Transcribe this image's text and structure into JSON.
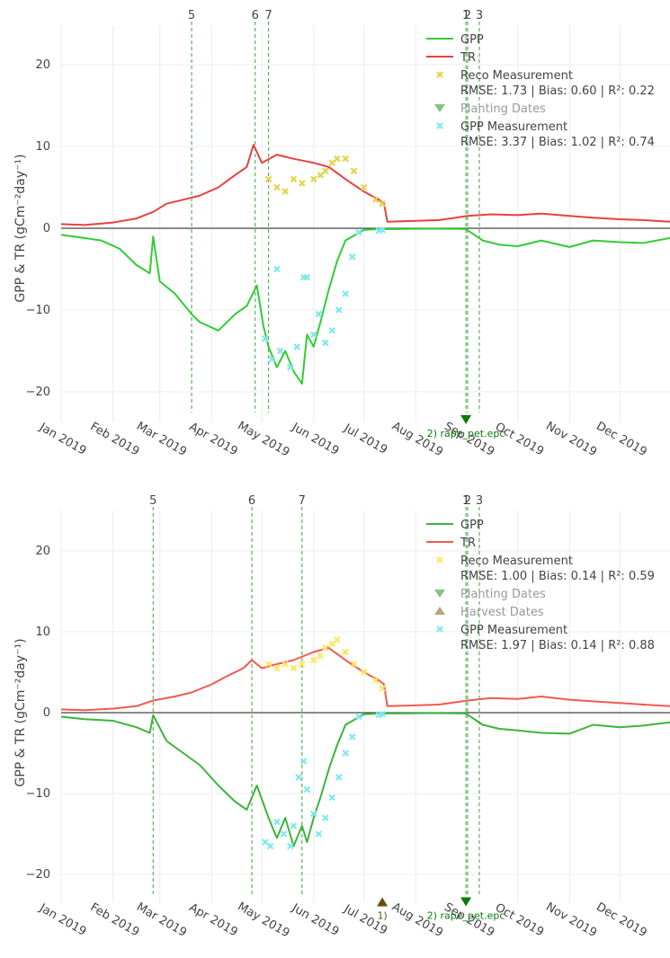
{
  "chart_data": [
    {
      "type": "line",
      "title": "",
      "ylabel": "GPP & TR (gCm⁻²day⁻¹)",
      "ylim": [
        -25,
        25
      ],
      "xlim": [
        "2019-01-01",
        "2019-12-31"
      ],
      "x_ticks": [
        "Jan 2019",
        "Feb 2019",
        "Mar 2019",
        "Apr 2019",
        "May 2019",
        "Jun 2019",
        "Jul 2019",
        "Aug 2019",
        "Sep 2019",
        "Oct 2019",
        "Nov 2019",
        "Dec 2019"
      ],
      "y_ticks": [
        20,
        10,
        0,
        -10,
        -20
      ],
      "grid": true,
      "legend_position": "top-right",
      "legend": [
        {
          "label": "GPP",
          "kind": "line",
          "color": "#33cc33"
        },
        {
          "label": "TR",
          "kind": "line",
          "color": "#e84040"
        },
        {
          "label": "Reco Measurement",
          "kind": "marker",
          "color": "#e6d24a",
          "stats": "RMSE: 1.73 | Bias: 0.60 | R²: 0.22"
        },
        {
          "label": "Planting Dates",
          "kind": "triangle-down",
          "color": "#2e9e2e",
          "muted": true
        },
        {
          "label": "GPP Measurement",
          "kind": "marker",
          "color": "#7ee8ee",
          "stats": "RMSE: 3.37 | Bias: 1.02 | R²: 0.74"
        }
      ],
      "vlines": [
        {
          "label": "5",
          "date": "2019-03-20"
        },
        {
          "label": "6",
          "date": "2019-04-27"
        },
        {
          "label": "7",
          "date": "2019-05-05"
        },
        {
          "label": "1",
          "date": "2019-08-31"
        },
        {
          "label": "2",
          "date": "2019-09-01"
        },
        {
          "label": "3",
          "date": "2019-09-08"
        }
      ],
      "markers": [
        {
          "shape": "triangle-down",
          "date": "2019-08-31",
          "y": -23.5,
          "label": "2) rape_pet.epc",
          "color": "#0a7a0a"
        }
      ],
      "series": [
        {
          "name": "GPP",
          "color": "#33cc33",
          "x": [
            "2019-01-01",
            "2019-01-15",
            "2019-01-25",
            "2019-02-05",
            "2019-02-15",
            "2019-02-23",
            "2019-02-25",
            "2019-03-01",
            "2019-03-10",
            "2019-03-20",
            "2019-03-25",
            "2019-04-05",
            "2019-04-15",
            "2019-04-22",
            "2019-04-28",
            "2019-05-02",
            "2019-05-05",
            "2019-05-10",
            "2019-05-15",
            "2019-05-20",
            "2019-05-25",
            "2019-05-28",
            "2019-06-01",
            "2019-06-05",
            "2019-06-10",
            "2019-06-15",
            "2019-06-20",
            "2019-07-01",
            "2019-07-10",
            "2019-07-20",
            "2019-08-10",
            "2019-08-31",
            "2019-09-10",
            "2019-09-20",
            "2019-10-01",
            "2019-10-15",
            "2019-11-01",
            "2019-11-15",
            "2019-12-01",
            "2019-12-15",
            "2019-12-31"
          ],
          "y": [
            -0.8,
            -1.2,
            -1.5,
            -2.5,
            -4.5,
            -5.5,
            -1,
            -6.5,
            -8,
            -10.5,
            -11.5,
            -12.5,
            -10.5,
            -9.5,
            -7,
            -12,
            -14.5,
            -17,
            -15,
            -17.5,
            -19,
            -13,
            -14.5,
            -11.5,
            -7.5,
            -4,
            -1.5,
            -0.2,
            -0.1,
            -0.1,
            -0.05,
            -0.1,
            -1.5,
            -2,
            -2.2,
            -1.5,
            -2.3,
            -1.5,
            -1.7,
            -1.8,
            -1.2
          ]
        },
        {
          "name": "TR",
          "color": "#e84040",
          "x": [
            "2019-01-01",
            "2019-01-15",
            "2019-02-01",
            "2019-02-15",
            "2019-02-25",
            "2019-03-05",
            "2019-03-15",
            "2019-03-25",
            "2019-04-05",
            "2019-04-15",
            "2019-04-22",
            "2019-04-26",
            "2019-05-01",
            "2019-05-10",
            "2019-05-20",
            "2019-06-01",
            "2019-06-10",
            "2019-06-20",
            "2019-07-01",
            "2019-07-10",
            "2019-07-13",
            "2019-07-15",
            "2019-08-01",
            "2019-08-15",
            "2019-09-01",
            "2019-09-15",
            "2019-10-01",
            "2019-10-15",
            "2019-11-01",
            "2019-11-15",
            "2019-12-01",
            "2019-12-15",
            "2019-12-31"
          ],
          "y": [
            0.5,
            0.4,
            0.7,
            1.2,
            2,
            3,
            3.5,
            4,
            5,
            6.5,
            7.5,
            10.2,
            8,
            9,
            8.5,
            8,
            7.5,
            6,
            4.5,
            3.5,
            3,
            0.8,
            0.9,
            1,
            1.5,
            1.7,
            1.6,
            1.8,
            1.5,
            1.3,
            1.1,
            1,
            0.8
          ]
        }
      ],
      "scatter": [
        {
          "name": "Reco Measurement",
          "color": "#e6d24a",
          "x": [
            "2019-05-05",
            "2019-05-10",
            "2019-05-15",
            "2019-05-20",
            "2019-05-25",
            "2019-06-01",
            "2019-06-05",
            "2019-06-08",
            "2019-06-12",
            "2019-06-15",
            "2019-06-20",
            "2019-06-25",
            "2019-07-01",
            "2019-07-08",
            "2019-07-12"
          ],
          "y": [
            6,
            5,
            4.5,
            6,
            5.5,
            6,
            6.5,
            7,
            8,
            8.5,
            8.5,
            7,
            5,
            3.5,
            3
          ]
        },
        {
          "name": "GPP Measurement",
          "color": "#7ee8ee",
          "x": [
            "2019-05-03",
            "2019-05-07",
            "2019-05-10",
            "2019-05-12",
            "2019-05-18",
            "2019-05-22",
            "2019-05-26",
            "2019-05-28",
            "2019-06-01",
            "2019-06-04",
            "2019-06-08",
            "2019-06-12",
            "2019-06-16",
            "2019-06-20",
            "2019-06-24",
            "2019-06-28",
            "2019-07-10",
            "2019-07-12"
          ],
          "y": [
            -13.5,
            -16,
            -5,
            -15,
            -17,
            -14.5,
            -6,
            -6,
            -13,
            -10.5,
            -14,
            -12.5,
            -10,
            -8,
            -3.5,
            -0.5,
            -0.3,
            -0.2
          ]
        }
      ]
    },
    {
      "type": "line",
      "title": "",
      "ylabel": "GPP & TR (gCm⁻²day⁻¹)",
      "ylim": [
        -25,
        25
      ],
      "xlim": [
        "2019-01-01",
        "2019-12-31"
      ],
      "x_ticks": [
        "Jan 2019",
        "Feb 2019",
        "Mar 2019",
        "Apr 2019",
        "May 2019",
        "Jun 2019",
        "Jul 2019",
        "Aug 2019",
        "Sep 2019",
        "Oct 2019",
        "Nov 2019",
        "Dec 2019"
      ],
      "y_ticks": [
        20,
        10,
        0,
        -10,
        -20
      ],
      "grid": true,
      "legend_position": "top-right",
      "legend": [
        {
          "label": "GPP",
          "kind": "line",
          "color": "#3cb43c"
        },
        {
          "label": "TR",
          "kind": "line",
          "color": "#ef5a50"
        },
        {
          "label": "Reco Measurement",
          "kind": "marker",
          "color": "#ffe45a",
          "stats": "RMSE: 1.00 | Bias: 0.14 | R²: 0.59"
        },
        {
          "label": "Planting Dates",
          "kind": "triangle-down",
          "color": "#2e9e2e",
          "muted": true
        },
        {
          "label": "Harvest Dates",
          "kind": "triangle-up",
          "color": "#8a6a20",
          "muted": true
        },
        {
          "label": "GPP Measurement",
          "kind": "marker",
          "color": "#7ee8ee",
          "stats": "RMSE: 1.97 | Bias: 0.14 | R²: 0.88"
        }
      ],
      "vlines": [
        {
          "label": "5",
          "date": "2019-02-25"
        },
        {
          "label": "6",
          "date": "2019-04-25"
        },
        {
          "label": "7",
          "date": "2019-05-25"
        },
        {
          "label": "1",
          "date": "2019-08-31"
        },
        {
          "label": "2",
          "date": "2019-09-01"
        },
        {
          "label": "3",
          "date": "2019-09-08"
        }
      ],
      "markers": [
        {
          "shape": "triangle-down",
          "date": "2019-08-31",
          "y": -23.5,
          "label": "2) rape_pet.epc",
          "color": "#0a7a0a"
        },
        {
          "shape": "triangle-up",
          "date": "2019-07-12",
          "y": -23.5,
          "label": "1)",
          "color": "#6b4a10"
        }
      ],
      "series": [
        {
          "name": "GPP",
          "color": "#3cb43c",
          "x": [
            "2019-01-01",
            "2019-01-15",
            "2019-02-01",
            "2019-02-15",
            "2019-02-23",
            "2019-02-25",
            "2019-03-05",
            "2019-03-15",
            "2019-03-25",
            "2019-04-05",
            "2019-04-15",
            "2019-04-22",
            "2019-04-28",
            "2019-05-05",
            "2019-05-10",
            "2019-05-15",
            "2019-05-20",
            "2019-05-25",
            "2019-05-28",
            "2019-06-01",
            "2019-06-05",
            "2019-06-10",
            "2019-06-15",
            "2019-06-20",
            "2019-07-01",
            "2019-07-10",
            "2019-07-20",
            "2019-08-10",
            "2019-08-31",
            "2019-09-10",
            "2019-09-20",
            "2019-10-01",
            "2019-10-15",
            "2019-11-01",
            "2019-11-15",
            "2019-12-01",
            "2019-12-15",
            "2019-12-31"
          ],
          "y": [
            -0.5,
            -0.8,
            -1,
            -1.8,
            -2.5,
            -0.3,
            -3.5,
            -5,
            -6.5,
            -9,
            -11,
            -12,
            -9,
            -13,
            -15.5,
            -13,
            -16.5,
            -14,
            -16,
            -13,
            -10.5,
            -7,
            -4,
            -1.5,
            -0.2,
            -0.1,
            -0.1,
            -0.05,
            -0.1,
            -1.5,
            -2,
            -2.2,
            -2.5,
            -2.6,
            -1.5,
            -1.8,
            -1.6,
            -1.2
          ]
        },
        {
          "name": "TR",
          "color": "#ef5a50",
          "x": [
            "2019-01-01",
            "2019-01-15",
            "2019-02-01",
            "2019-02-15",
            "2019-02-25",
            "2019-03-10",
            "2019-03-20",
            "2019-04-01",
            "2019-04-10",
            "2019-04-20",
            "2019-04-25",
            "2019-05-01",
            "2019-05-10",
            "2019-05-20",
            "2019-06-01",
            "2019-06-10",
            "2019-06-20",
            "2019-07-01",
            "2019-07-10",
            "2019-07-13",
            "2019-07-15",
            "2019-08-01",
            "2019-08-15",
            "2019-09-01",
            "2019-09-15",
            "2019-10-01",
            "2019-10-15",
            "2019-11-01",
            "2019-11-15",
            "2019-12-01",
            "2019-12-15",
            "2019-12-31"
          ],
          "y": [
            0.4,
            0.3,
            0.5,
            0.8,
            1.5,
            2,
            2.5,
            3.5,
            4.5,
            5.5,
            6.5,
            5.5,
            6,
            6.5,
            7.5,
            8,
            6.5,
            5,
            4,
            3.5,
            0.8,
            0.9,
            1,
            1.5,
            1.8,
            1.7,
            2,
            1.6,
            1.4,
            1.2,
            1,
            0.8
          ]
        }
      ],
      "scatter": [
        {
          "name": "Reco Measurement",
          "color": "#ffe45a",
          "x": [
            "2019-05-05",
            "2019-05-10",
            "2019-05-15",
            "2019-05-20",
            "2019-05-25",
            "2019-06-01",
            "2019-06-05",
            "2019-06-08",
            "2019-06-12",
            "2019-06-15",
            "2019-06-20",
            "2019-06-25",
            "2019-07-01",
            "2019-07-08",
            "2019-07-12"
          ],
          "y": [
            6,
            5.5,
            6,
            5.5,
            6,
            6.5,
            7,
            8,
            8.5,
            9,
            7.5,
            6,
            5,
            4,
            3
          ]
        },
        {
          "name": "GPP Measurement",
          "color": "#7ee8ee",
          "x": [
            "2019-05-03",
            "2019-05-06",
            "2019-05-10",
            "2019-05-14",
            "2019-05-18",
            "2019-05-20",
            "2019-05-23",
            "2019-05-26",
            "2019-05-28",
            "2019-06-01",
            "2019-06-04",
            "2019-06-08",
            "2019-06-12",
            "2019-06-16",
            "2019-06-20",
            "2019-06-24",
            "2019-06-28",
            "2019-07-10",
            "2019-07-12"
          ],
          "y": [
            -16,
            -16.5,
            -13.5,
            -15,
            -16.5,
            -14,
            -8,
            -6,
            -9.5,
            -12.5,
            -15,
            -13,
            -10.5,
            -8,
            -5,
            -3,
            -0.5,
            -0.3,
            -0.2
          ]
        }
      ]
    }
  ]
}
